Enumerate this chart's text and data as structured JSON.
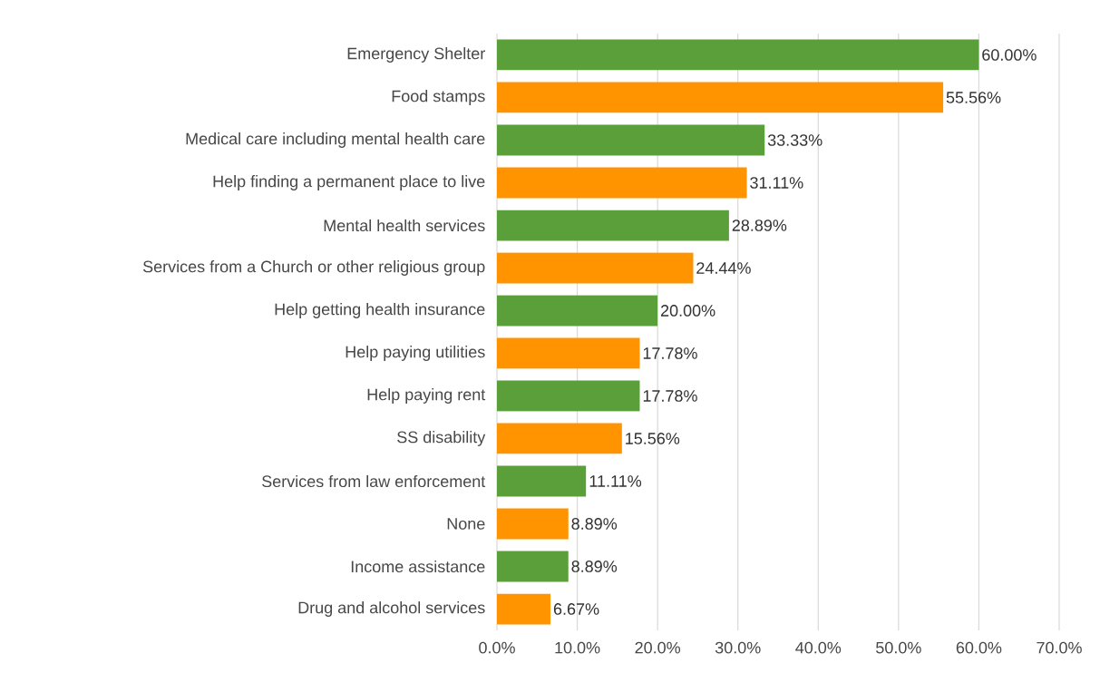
{
  "chart_data": {
    "type": "bar",
    "orientation": "horizontal",
    "categories": [
      "Emergency Shelter",
      "Food stamps",
      "Medical care including mental health care",
      "Help finding a permanent place to live",
      "Mental health services",
      "Services from a Church or other religious group",
      "Help getting health insurance",
      "Help paying utilities",
      "Help paying rent",
      "SS disability",
      "Services from law enforcement",
      "None",
      "Income assistance",
      "Drug and alcohol services"
    ],
    "values": [
      60.0,
      55.56,
      33.33,
      31.11,
      28.89,
      24.44,
      20.0,
      17.78,
      17.78,
      15.56,
      11.11,
      8.89,
      8.89,
      6.67
    ],
    "value_labels": [
      "60.00%",
      "55.56%",
      "33.33%",
      "31.11%",
      "28.89%",
      "24.44%",
      "20.00%",
      "17.78%",
      "17.78%",
      "15.56%",
      "11.11%",
      "8.89%",
      "8.89%",
      "6.67%"
    ],
    "colors": [
      "#5a9f3a",
      "#ff9400",
      "#5a9f3a",
      "#ff9400",
      "#5a9f3a",
      "#ff9400",
      "#5a9f3a",
      "#ff9400",
      "#5a9f3a",
      "#ff9400",
      "#5a9f3a",
      "#ff9400",
      "#5a9f3a",
      "#ff9400"
    ],
    "xlim": [
      0,
      70
    ],
    "xticks": [
      {
        "value": 0,
        "label": "0.0%"
      },
      {
        "value": 10,
        "label": "10.0%"
      },
      {
        "value": 20,
        "label": "20.0%"
      },
      {
        "value": 30,
        "label": "30.0%"
      },
      {
        "value": 40,
        "label": "40.0%"
      },
      {
        "value": 50,
        "label": "50.0%"
      },
      {
        "value": 60,
        "label": "60.0%"
      },
      {
        "value": 70,
        "label": "70.0%"
      }
    ],
    "grid": "x"
  }
}
